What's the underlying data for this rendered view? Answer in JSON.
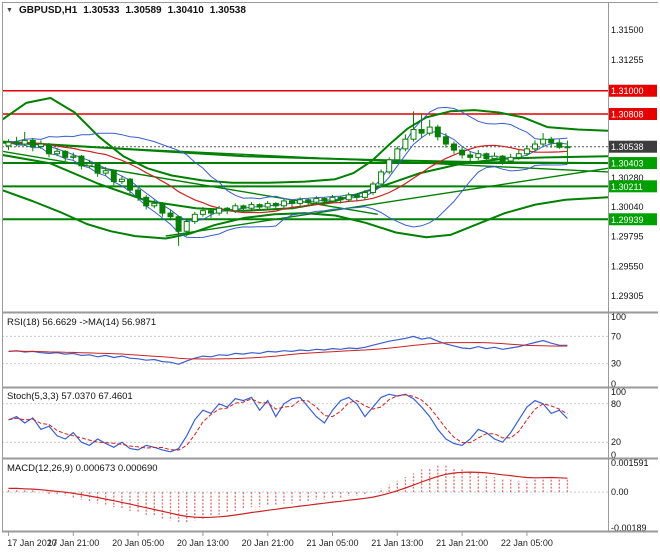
{
  "header": {
    "menu_icon": "▼",
    "symbol": "GBPUSD,H1",
    "open": "1.30533",
    "high": "1.30589",
    "low": "1.30410",
    "close": "1.30538"
  },
  "colors": {
    "green": "#008000",
    "candle": "#067f06",
    "red_line": "#e60000",
    "blue": "#3a5fcd",
    "red_ma": "#cc2222",
    "macd_bar": "#dc7b7b",
    "grid": "#c9c9c9",
    "border": "#9a9a9a",
    "bid": "#555555",
    "flag_red": "#e60000",
    "flag_green": "#00a000",
    "flag_dark": "#3d3d3d"
  },
  "chart_data": [
    {
      "id": "price",
      "type": "candlestick",
      "symbol": "GBPUSD",
      "timeframe": "H1",
      "title": "GBPUSD,H1 1.30533 1.30589 1.30410 1.30538",
      "price_range": {
        "max": 1.3165,
        "min": 1.2919
      },
      "bid": 1.30538,
      "y_axis_plain": [
        [
          "1.31500",
          1.315
        ],
        [
          "1.31255",
          1.31255
        ],
        [
          "1.30280",
          1.3028
        ],
        [
          "1.30040",
          1.3004
        ],
        [
          "1.29795",
          1.29795
        ],
        [
          "1.29550",
          1.2955
        ],
        [
          "1.29305",
          1.29305
        ]
      ],
      "y_axis_flags": [
        [
          "1.31000",
          1.31,
          "red"
        ],
        [
          "1.30808",
          1.30808,
          "red"
        ],
        [
          "1.30403",
          1.30403,
          "green"
        ],
        [
          "1.30211",
          1.30211,
          "green"
        ],
        [
          "1.29939",
          1.29939,
          "green"
        ],
        [
          "1.30538",
          1.30538,
          "dark"
        ]
      ],
      "x_ticks": {
        "labels": [
          "17 Jan 2020",
          "17 Jan 21:00",
          "20 Jan 05:00",
          "20 Jan 13:00",
          "20 Jan 21:00",
          "21 Jan 05:00",
          "21 Jan 13:00",
          "21 Jan 21:00",
          "22 Jan 05:00"
        ],
        "candle_indices": [
          0,
          8,
          16,
          24,
          32,
          40,
          48,
          56,
          64
        ]
      },
      "candles": [
        [
          1.30545,
          1.306,
          1.3051,
          1.30575
        ],
        [
          1.30575,
          1.3062,
          1.3054,
          1.3056
        ],
        [
          1.3056,
          1.3066,
          1.30545,
          1.3059
        ],
        [
          1.3059,
          1.3061,
          1.305,
          1.3054
        ],
        [
          1.3054,
          1.3059,
          1.3052,
          1.3056
        ],
        [
          1.3056,
          1.3057,
          1.3045,
          1.3048
        ],
        [
          1.3048,
          1.3053,
          1.3046,
          1.305
        ],
        [
          1.305,
          1.3051,
          1.3042,
          1.3045
        ],
        [
          1.3045,
          1.3049,
          1.3043,
          1.3046
        ],
        [
          1.3046,
          1.3047,
          1.3035,
          1.3038
        ],
        [
          1.3038,
          1.3043,
          1.3036,
          1.304
        ],
        [
          1.304,
          1.3041,
          1.3029,
          1.3032
        ],
        [
          1.3032,
          1.3037,
          1.303,
          1.3034
        ],
        [
          1.3034,
          1.3035,
          1.3022,
          1.3025
        ],
        [
          1.3025,
          1.303,
          1.3023,
          1.3027
        ],
        [
          1.3027,
          1.3028,
          1.3015,
          1.3018
        ],
        [
          1.3018,
          1.302,
          1.3009,
          1.3012
        ],
        [
          1.3012,
          1.3014,
          1.3002,
          1.3005
        ],
        [
          1.3005,
          1.301,
          1.3003,
          1.3007
        ],
        [
          1.3007,
          1.3008,
          1.2996,
          1.2999
        ],
        [
          1.2999,
          1.3002,
          1.2993,
          1.2996
        ],
        [
          1.2996,
          1.2997,
          1.2972,
          1.2984
        ],
        [
          1.2984,
          1.2994,
          1.298,
          1.2992
        ],
        [
          1.2992,
          1.3,
          1.299,
          1.2998
        ],
        [
          1.2998,
          1.3004,
          1.2996,
          1.3001
        ],
        [
          1.3001,
          1.3003,
          1.2995,
          1.2999
        ],
        [
          1.2999,
          1.3005,
          1.2997,
          1.3003
        ],
        [
          1.3003,
          1.3004,
          1.2998,
          1.3001
        ],
        [
          1.3001,
          1.3007,
          1.2999,
          1.3005
        ],
        [
          1.3005,
          1.3006,
          1.3,
          1.3003
        ],
        [
          1.3003,
          1.3008,
          1.3001,
          1.3006
        ],
        [
          1.3006,
          1.3007,
          1.3001,
          1.3004
        ],
        [
          1.3004,
          1.3009,
          1.3002,
          1.3007
        ],
        [
          1.3007,
          1.3008,
          1.3002,
          1.3005
        ],
        [
          1.3005,
          1.3011,
          1.3003,
          1.3009
        ],
        [
          1.3009,
          1.301,
          1.3004,
          1.3007
        ],
        [
          1.3007,
          1.3012,
          1.3005,
          1.301
        ],
        [
          1.301,
          1.3011,
          1.3005,
          1.3008
        ],
        [
          1.3008,
          1.3013,
          1.3006,
          1.3011
        ],
        [
          1.3011,
          1.3012,
          1.3006,
          1.3009
        ],
        [
          1.3009,
          1.3014,
          1.3007,
          1.3012
        ],
        [
          1.3012,
          1.3013,
          1.3007,
          1.301
        ],
        [
          1.301,
          1.3016,
          1.3008,
          1.3014
        ],
        [
          1.3014,
          1.3015,
          1.3009,
          1.3012
        ],
        [
          1.3012,
          1.3018,
          1.301,
          1.3016
        ],
        [
          1.3016,
          1.3025,
          1.3014,
          1.3023
        ],
        [
          1.3023,
          1.3035,
          1.3021,
          1.3033
        ],
        [
          1.3033,
          1.3045,
          1.3031,
          1.3043
        ],
        [
          1.3043,
          1.3054,
          1.3041,
          1.3052
        ],
        [
          1.3052,
          1.3064,
          1.305,
          1.306
        ],
        [
          1.306,
          1.3083,
          1.3058,
          1.3068
        ],
        [
          1.3068,
          1.3081,
          1.3061,
          1.3065
        ],
        [
          1.3065,
          1.3076,
          1.3063,
          1.307
        ],
        [
          1.307,
          1.3072,
          1.3059,
          1.3062
        ],
        [
          1.3062,
          1.3065,
          1.3053,
          1.3056
        ],
        [
          1.3056,
          1.3058,
          1.3048,
          1.3051
        ],
        [
          1.3051,
          1.3054,
          1.3044,
          1.3047
        ],
        [
          1.3047,
          1.305,
          1.3042,
          1.3045
        ],
        [
          1.3045,
          1.3051,
          1.3043,
          1.3048
        ],
        [
          1.3048,
          1.3049,
          1.3041,
          1.3044
        ],
        [
          1.3044,
          1.3049,
          1.3042,
          1.3046
        ],
        [
          1.3046,
          1.3047,
          1.3039,
          1.3042
        ],
        [
          1.3042,
          1.3048,
          1.304,
          1.3045
        ],
        [
          1.3045,
          1.3051,
          1.3043,
          1.3048
        ],
        [
          1.3048,
          1.3055,
          1.3046,
          1.3052
        ],
        [
          1.3052,
          1.3059,
          1.305,
          1.3056
        ],
        [
          1.3056,
          1.3065,
          1.3054,
          1.306
        ],
        [
          1.306,
          1.3062,
          1.3053,
          1.3057
        ],
        [
          1.3057,
          1.306,
          1.3052,
          1.30533
        ],
        [
          1.30533,
          1.30589,
          1.3041,
          1.30538
        ]
      ],
      "overlays": {
        "hlines_red": [
          1.31,
          1.30808
        ],
        "hlines_green": [
          1.30403,
          1.30211,
          1.29939
        ],
        "trendlines": [
          {
            "name": "descending-trendline-1",
            "x1": 0,
            "p1": 1.3057,
            "x2": 1,
            "p2": 1.3033
          },
          {
            "name": "descending-trendline-2",
            "x1": 0,
            "p1": 1.305,
            "x2": 0.62,
            "p2": 1.2998
          },
          {
            "name": "ascending-trendline",
            "x1": 0.27,
            "p1": 1.298,
            "x2": 1,
            "p2": 1.3036
          }
        ],
        "curves": [
          {
            "name": "upper-envelope",
            "pts": [
              [
                0,
                1.3076
              ],
              [
                0.04,
                1.309
              ],
              [
                0.08,
                1.3094
              ],
              [
                0.12,
                1.3082
              ],
              [
                0.16,
                1.3062
              ],
              [
                0.2,
                1.3046
              ],
              [
                0.24,
                1.3036
              ],
              [
                0.28,
                1.303
              ],
              [
                0.33,
                1.3026
              ],
              [
                0.38,
                1.3024
              ],
              [
                0.44,
                1.3024
              ],
              [
                0.5,
                1.3025
              ],
              [
                0.55,
                1.3027
              ],
              [
                0.58,
                1.3032
              ],
              [
                0.61,
                1.3042
              ],
              [
                0.64,
                1.3056
              ],
              [
                0.67,
                1.3069
              ],
              [
                0.7,
                1.3078
              ],
              [
                0.74,
                1.3083
              ],
              [
                0.78,
                1.3084
              ],
              [
                0.82,
                1.3082
              ],
              [
                0.86,
                1.3078
              ],
              [
                0.9,
                1.307
              ],
              [
                0.95,
                1.3068
              ],
              [
                1,
                1.3067
              ]
            ]
          },
          {
            "name": "lower-envelope",
            "pts": [
              [
                0,
                1.3018
              ],
              [
                0.05,
                1.3009
              ],
              [
                0.1,
                1.2999
              ],
              [
                0.14,
                1.299
              ],
              [
                0.18,
                1.2984
              ],
              [
                0.22,
                1.298
              ],
              [
                0.27,
                1.2978
              ],
              [
                0.31,
                1.2982
              ],
              [
                0.35,
                1.2989
              ],
              [
                0.4,
                1.2995
              ],
              [
                0.45,
                1.2998
              ],
              [
                0.5,
                1.2999
              ],
              [
                0.55,
                1.2997
              ],
              [
                0.6,
                1.2991
              ],
              [
                0.65,
                1.2983
              ],
              [
                0.7,
                1.2979
              ],
              [
                0.74,
                1.2981
              ],
              [
                0.78,
                1.2989
              ],
              [
                0.83,
                1.2999
              ],
              [
                0.88,
                1.3006
              ],
              [
                0.93,
                1.301
              ],
              [
                1,
                1.3012
              ]
            ]
          },
          {
            "name": "mid-ma",
            "pts": [
              [
                0,
                1.3047
              ],
              [
                0.08,
                1.304
              ],
              [
                0.16,
                1.3023
              ],
              [
                0.24,
                1.3009
              ],
              [
                0.32,
                1.3003
              ],
              [
                0.4,
                1.3001
              ],
              [
                0.48,
                1.3003
              ],
              [
                0.55,
                1.3009
              ],
              [
                0.62,
                1.302
              ],
              [
                0.69,
                1.3032
              ],
              [
                0.76,
                1.304
              ],
              [
                0.83,
                1.3044
              ],
              [
                0.9,
                1.3045
              ],
              [
                1,
                1.3046
              ]
            ]
          },
          {
            "name": "slow-ma",
            "pts": [
              [
                0,
                1.3058
              ],
              [
                0.2,
                1.3052
              ],
              [
                0.4,
                1.3046
              ],
              [
                0.6,
                1.3043
              ],
              [
                0.8,
                1.3041
              ],
              [
                1,
                1.30403
              ]
            ]
          }
        ],
        "computed": {
          "fast_ma_period": 4,
          "medium_ma_period": 13,
          "band_period": 13,
          "band_dev": 2
        }
      }
    },
    {
      "id": "rsi",
      "type": "line",
      "label": "RSI(18) 56.6629 ->MA(14) 56.9871",
      "range": [
        0,
        100
      ],
      "levels": [
        70,
        30
      ],
      "signal_period": 14,
      "y_labels": [
        [
          "100",
          100
        ],
        [
          "70",
          70
        ],
        [
          "30",
          30
        ],
        [
          "0",
          0
        ]
      ],
      "values": [
        48,
        49,
        47,
        48,
        46,
        45,
        46,
        44,
        45,
        42,
        43,
        40,
        42,
        39,
        41,
        38,
        37,
        35,
        36,
        33,
        32,
        29,
        34,
        38,
        41,
        40,
        43,
        42,
        45,
        44,
        46,
        45,
        48,
        47,
        49,
        48,
        50,
        49,
        51,
        50,
        52,
        51,
        53,
        52,
        54,
        57,
        60,
        63,
        65,
        67,
        70,
        66,
        68,
        63,
        59,
        56,
        53,
        52,
        55,
        52,
        54,
        51,
        53,
        55,
        58,
        61,
        64,
        60,
        57,
        56.7
      ]
    },
    {
      "id": "stoch",
      "type": "line",
      "label": "Stoch(5,3,3) 57.0370 67.4601",
      "range": [
        0,
        100
      ],
      "levels": [
        80,
        20
      ],
      "signal_period": 3,
      "y_labels": [
        [
          "100",
          100
        ],
        [
          "80",
          80
        ],
        [
          "20",
          20
        ],
        [
          "0",
          0
        ]
      ],
      "values": [
        55,
        60,
        50,
        58,
        40,
        45,
        30,
        25,
        35,
        20,
        15,
        25,
        18,
        12,
        20,
        10,
        8,
        15,
        12,
        8,
        5,
        10,
        30,
        55,
        70,
        65,
        80,
        75,
        88,
        85,
        90,
        70,
        85,
        60,
        80,
        88,
        90,
        75,
        60,
        50,
        70,
        85,
        90,
        80,
        60,
        75,
        90,
        95,
        92,
        95,
        88,
        75,
        60,
        40,
        25,
        18,
        15,
        25,
        40,
        35,
        25,
        20,
        35,
        55,
        75,
        85,
        80,
        65,
        70,
        57
      ]
    },
    {
      "id": "macd",
      "type": "bar",
      "label": "MACD(12,26,9) 0.000673 0.000690",
      "range": [
        -0.0019,
        0.0016
      ],
      "levels": [
        0
      ],
      "signal_period": 9,
      "y_labels": [
        [
          "0.001591",
          0.001591
        ],
        [
          "0.00",
          0
        ],
        [
          "-0.00189",
          -0.00189
        ]
      ],
      "values": [
        0.0002,
        0.0002,
        0.0001,
        0.0001,
        0,
        -0.0001,
        -0.0001,
        -0.0002,
        -0.0003,
        -0.0004,
        -0.0005,
        -0.0006,
        -0.0007,
        -0.0008,
        -0.0009,
        -0.001,
        -0.0011,
        -0.0012,
        -0.0013,
        -0.0014,
        -0.0015,
        -0.0016,
        -0.0016,
        -0.0015,
        -0.0014,
        -0.0013,
        -0.0012,
        -0.0011,
        -0.001,
        -0.0009,
        -0.0008,
        -0.0008,
        -0.0007,
        -0.0007,
        -0.0006,
        -0.0006,
        -0.0005,
        -0.0005,
        -0.0004,
        -0.0004,
        -0.0003,
        -0.0003,
        -0.0002,
        -0.0002,
        -0.0001,
        0,
        0.0002,
        0.0004,
        0.0006,
        0.0008,
        0.001,
        0.0012,
        0.0013,
        0.0014,
        0.0014,
        0.0013,
        0.0012,
        0.0011,
        0.001,
        0.0009,
        0.0008,
        0.0007,
        0.0007,
        0.0006,
        0.0006,
        0.0007,
        0.0008,
        0.0008,
        0.0007,
        0.000673
      ]
    }
  ]
}
